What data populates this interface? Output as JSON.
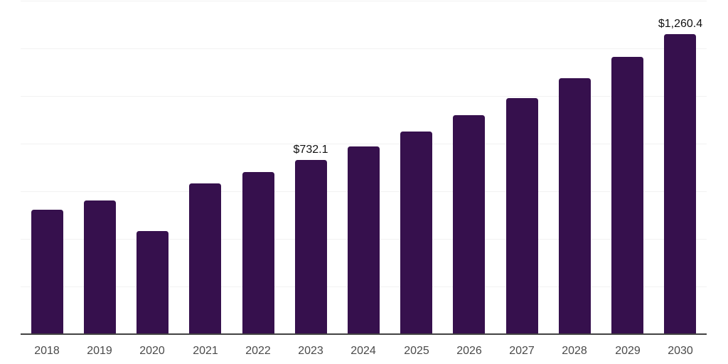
{
  "chart_data": {
    "type": "bar",
    "title": "",
    "xlabel": "",
    "ylabel": "",
    "categories": [
      "2018",
      "2019",
      "2020",
      "2021",
      "2022",
      "2023",
      "2024",
      "2025",
      "2026",
      "2027",
      "2028",
      "2029",
      "2030"
    ],
    "values": [
      522,
      561,
      433,
      633,
      681,
      732.1,
      788,
      851,
      919,
      991,
      1075,
      1164,
      1260.4
    ],
    "data_labels": {
      "2023": "$732.1",
      "2030": "$1,260.4"
    },
    "ylim": [
      0,
      1400
    ],
    "grid_step": 200,
    "grid": true,
    "legend": false,
    "y_axis_labels_visible": false,
    "colors": {
      "bar": "#36104d",
      "grid_line": "#f2f2f2",
      "axis_line": "#424242",
      "tick_label": "#4a4a4a",
      "value_label": "#111111",
      "background": "#ffffff"
    }
  }
}
